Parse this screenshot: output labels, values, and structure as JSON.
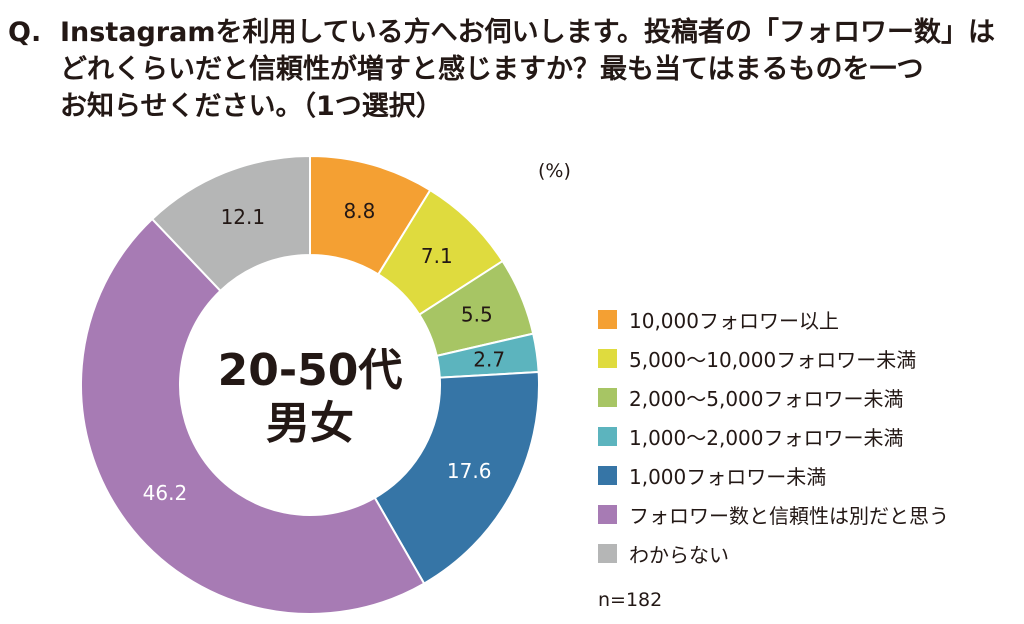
{
  "question": {
    "marker": "Q.",
    "lines": [
      "Instagramを利用している方へお伺いします。投稿者の「フォロワー数」は",
      "どれくらいだと信頼性が増すと感じますか？最も当てはまるものを一つ",
      "お知らせください。（1つ選択）"
    ]
  },
  "chart_data": {
    "type": "pie",
    "style": "donut",
    "center_label": [
      "20-50代",
      "男女"
    ],
    "unit": "(%)",
    "sample_size": "n=182",
    "legend_position": "right",
    "slices": [
      {
        "label": "10,000フォロワー以上",
        "value": 8.8,
        "color": "#F4A033",
        "value_color": "#231815"
      },
      {
        "label": "5,000～10,000フォロワー未満",
        "value": 7.1,
        "color": "#DFDB3E",
        "value_color": "#231815"
      },
      {
        "label": "2,000～5,000フォロワー未満",
        "value": 5.5,
        "color": "#A7C564",
        "value_color": "#231815"
      },
      {
        "label": "1,000～2,000フォロワー未満",
        "value": 2.7,
        "color": "#5CB4BE",
        "value_color": "#231815"
      },
      {
        "label": "1,000フォロワー未満",
        "value": 17.6,
        "color": "#3675A6",
        "value_color": "#ffffff"
      },
      {
        "label": "フォロワー数と信頼性は別だと思う",
        "value": 46.2,
        "color": "#A77BB4",
        "value_color": "#ffffff"
      },
      {
        "label": "わからない",
        "value": 12.1,
        "color": "#B5B6B6",
        "value_color": "#231815"
      }
    ]
  }
}
